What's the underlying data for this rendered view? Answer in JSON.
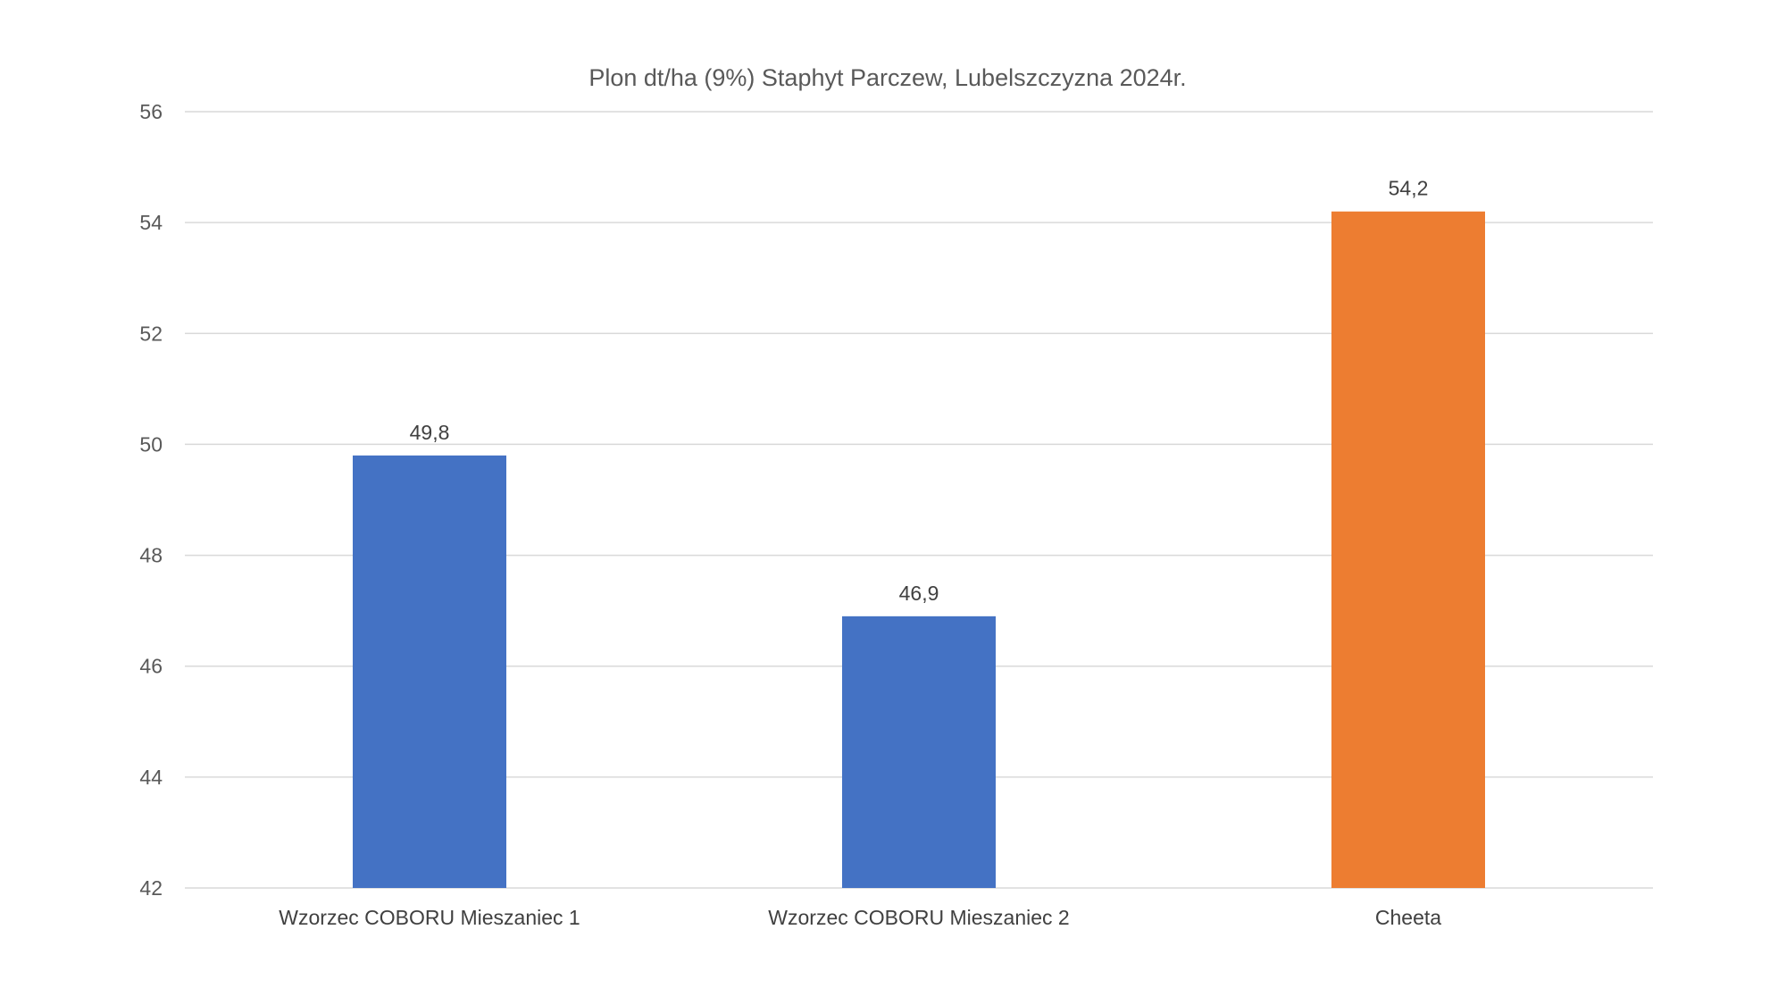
{
  "chart_data": {
    "type": "bar",
    "title": "Plon dt/ha (9%) Staphyt Parczew, Lubelszczyzna 2024r.",
    "xlabel": "",
    "ylabel": "",
    "categories": [
      "Wzorzec COBORU Mieszaniec 1",
      "Wzorzec COBORU Mieszaniec 2",
      "Cheeta"
    ],
    "values": [
      49.8,
      46.9,
      54.2
    ],
    "data_labels": [
      "49,8",
      "46,9",
      "54,2"
    ],
    "bar_colors": [
      "#4472C4",
      "#4472C4",
      "#ED7D31"
    ],
    "ylim": [
      42,
      56
    ],
    "yticks": [
      42,
      44,
      46,
      48,
      50,
      52,
      54,
      56
    ],
    "ytick_labels": [
      "42",
      "44",
      "46",
      "48",
      "50",
      "52",
      "54",
      "56"
    ],
    "grid": true,
    "legend": "none"
  }
}
